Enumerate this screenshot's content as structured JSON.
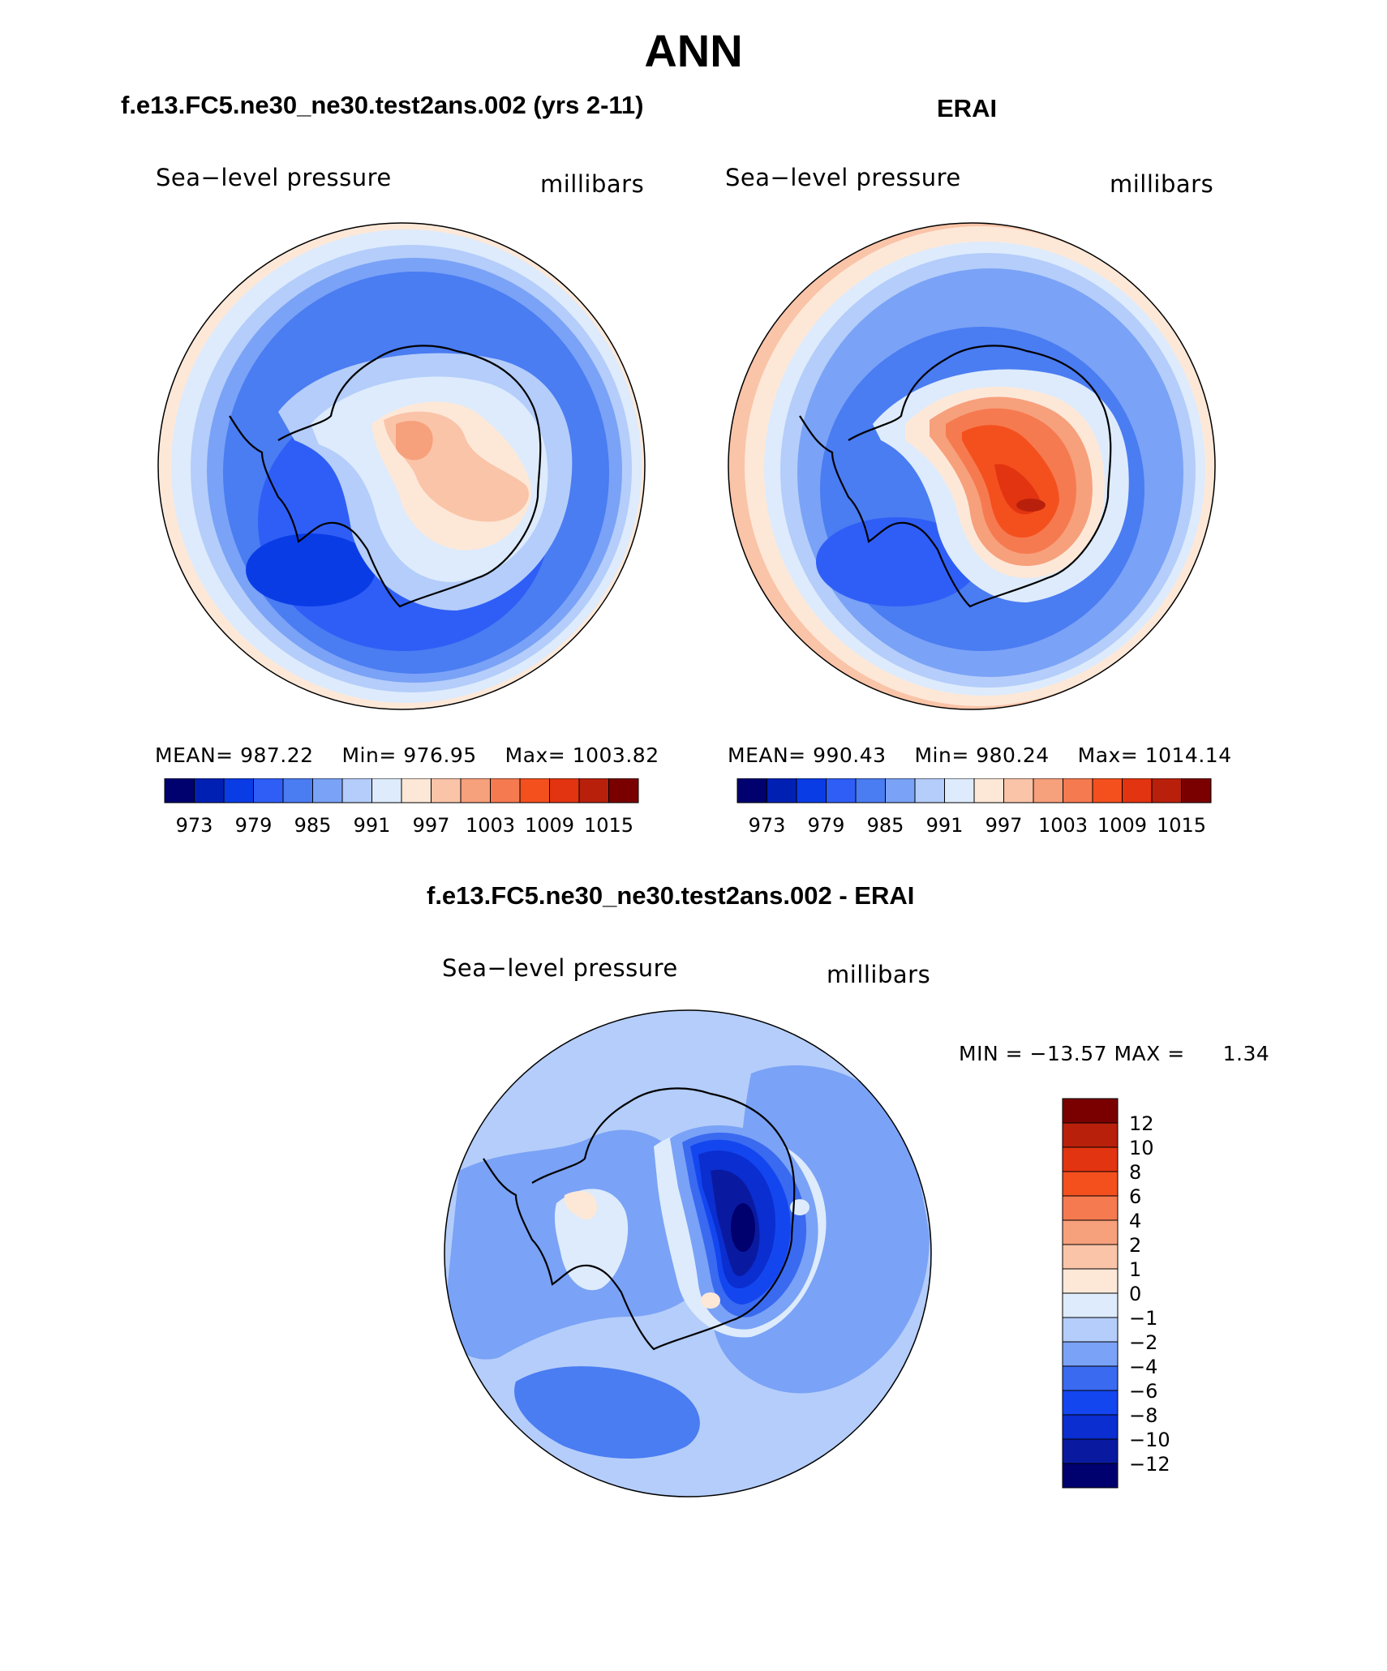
{
  "title": "ANN",
  "panels": {
    "model": {
      "title": "f.e13.FC5.ne30_ne30.test2ans.002 (yrs 2-11)",
      "variable": "Sea−level pressure",
      "units": "millibars",
      "stats": {
        "mean_label": "MEAN=",
        "mean": "987.22",
        "min_label": "Min=",
        "min": "976.95",
        "max_label": "Max=",
        "max": "1003.82"
      }
    },
    "obs": {
      "title": "ERAI",
      "variable": "Sea−level pressure",
      "units": "millibars",
      "stats": {
        "mean_label": "MEAN=",
        "mean": "990.43",
        "min_label": "Min=",
        "min": "980.24",
        "max_label": "Max=",
        "max": "1014.14"
      }
    },
    "diff": {
      "title": "f.e13.FC5.ne30_ne30.test2ans.002 - ERAI",
      "variable": "Sea−level pressure",
      "units": "millibars",
      "stats": {
        "min_label": "MIN =",
        "min": "−13.57",
        "max_label": "MAX =",
        "max": "1.34"
      }
    }
  },
  "colorbars": {
    "abs": {
      "colors": [
        "#00006e",
        "#0020b4",
        "#0a3ce6",
        "#2f5ef6",
        "#4a7cf2",
        "#7aa2f6",
        "#b4cdfa",
        "#ddebfc",
        "#fde8d8",
        "#fac4a8",
        "#f7a07c",
        "#f67a50",
        "#f4501e",
        "#e23410",
        "#b8200c",
        "#7a0000"
      ],
      "ticks": [
        "973",
        "979",
        "985",
        "991",
        "997",
        "1003",
        "1009",
        "1015"
      ]
    },
    "diff": {
      "colors": [
        "#00006e",
        "#0a1aa0",
        "#0a2ed0",
        "#1446f0",
        "#3a6af0",
        "#7aa2f6",
        "#b4cdfa",
        "#ddebfc",
        "#fde8d8",
        "#fac4a8",
        "#f7a07c",
        "#f67a50",
        "#f4501e",
        "#e23410",
        "#b8200c",
        "#7a0000"
      ],
      "ticks": [
        "12",
        "10",
        "8",
        "6",
        "4",
        "2",
        "1",
        "0",
        "−1",
        "−2",
        "−4",
        "−6",
        "−8",
        "−10",
        "−12"
      ]
    }
  },
  "chart_data": [
    {
      "type": "heatmap",
      "title": "f.e13.FC5.ne30_ne30.test2ans.002 (yrs 2-11)",
      "variable": "Sea−level pressure",
      "units": "millibars",
      "projection": "south polar stereographic",
      "mean": 987.22,
      "min": 976.95,
      "max": 1003.82,
      "contour_levels": [
        973,
        976,
        979,
        982,
        985,
        988,
        991,
        994,
        997,
        1000,
        1003,
        1006,
        1009,
        1012,
        1015
      ]
    },
    {
      "type": "heatmap",
      "title": "ERAI",
      "variable": "Sea−level pressure",
      "units": "millibars",
      "projection": "south polar stereographic",
      "mean": 990.43,
      "min": 980.24,
      "max": 1014.14,
      "contour_levels": [
        973,
        976,
        979,
        982,
        985,
        988,
        991,
        994,
        997,
        1000,
        1003,
        1006,
        1009,
        1012,
        1015
      ]
    },
    {
      "type": "heatmap",
      "title": "f.e13.FC5.ne30_ne30.test2ans.002 - ERAI",
      "variable": "Sea−level pressure",
      "units": "millibars",
      "projection": "south polar stereographic",
      "min": -13.57,
      "max": 1.34,
      "contour_levels": [
        -12,
        -10,
        -8,
        -6,
        -4,
        -2,
        -1,
        0,
        1,
        2,
        4,
        6,
        8,
        10,
        12
      ]
    }
  ]
}
